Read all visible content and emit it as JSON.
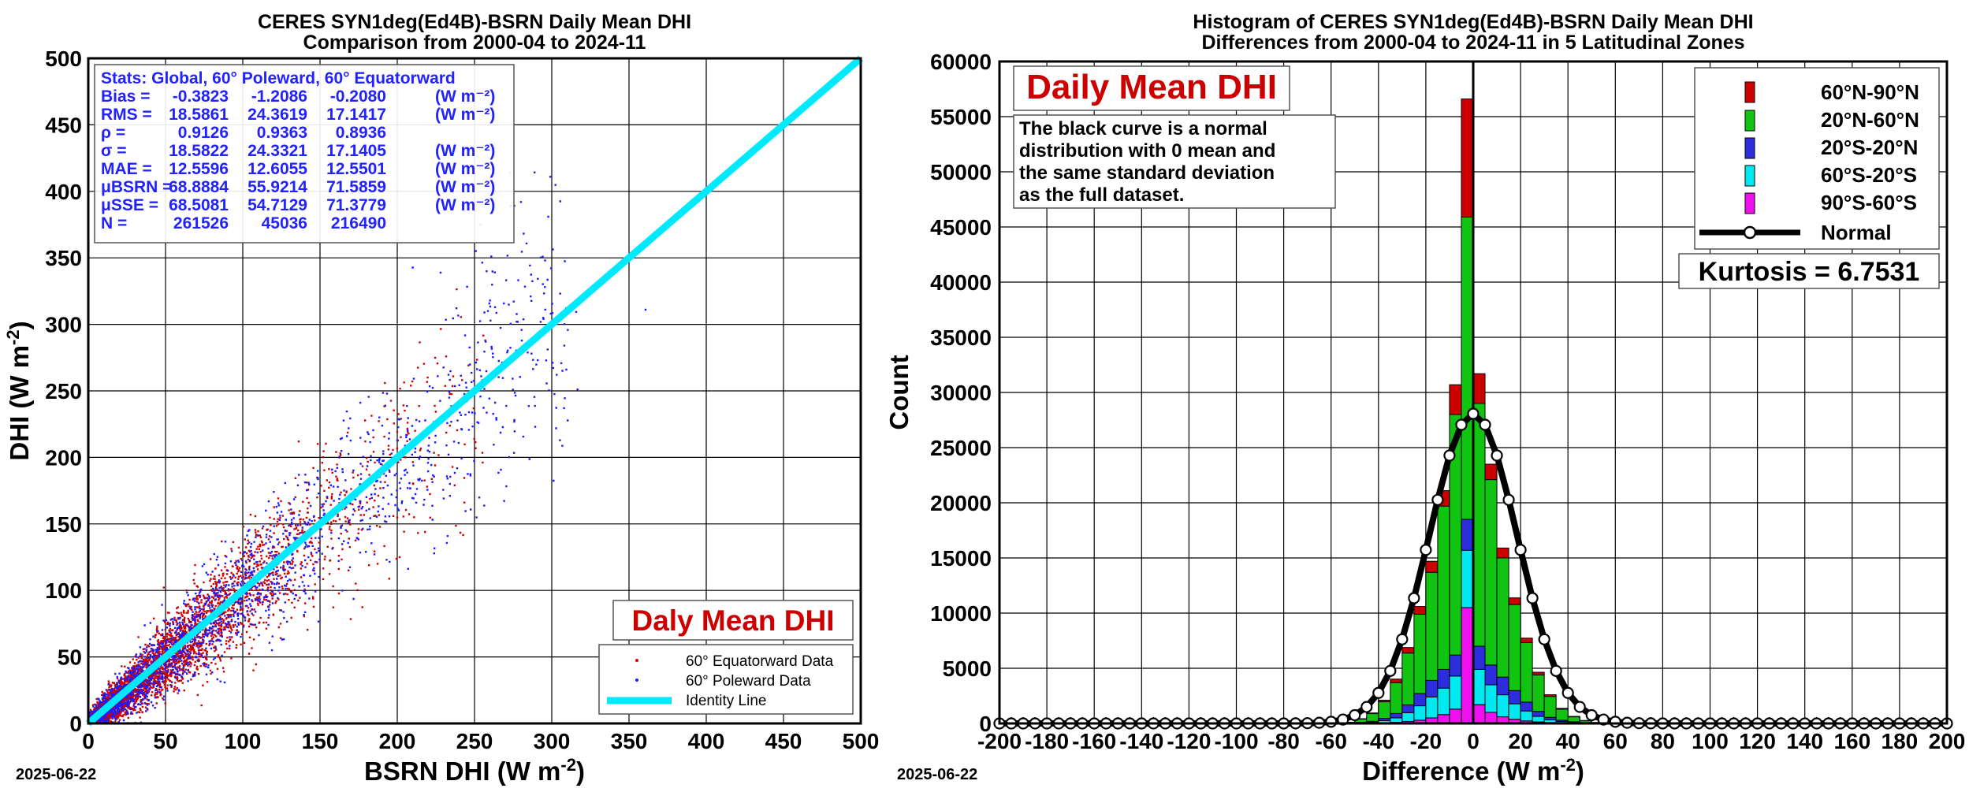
{
  "colors": {
    "equatorward": "#cc0000",
    "poleward": "#1a1aff",
    "identity": "#00eaff",
    "title_red": "#cc0000",
    "stats_blue": "#2222ff",
    "zone_60N_90N": "#cc0000",
    "zone_20N_60N": "#11c411",
    "zone_20S_20N": "#2d2ddd",
    "zone_60S_20S": "#00e8f0",
    "zone_90S_60S": "#ee10ee"
  },
  "left": {
    "title_line1": "CERES SYN1deg(Ed4B)-BSRN Daily Mean DHI",
    "title_line2": "Comparison from 2000-04 to 2024-11",
    "date": "2025-06-22",
    "inset_label": "Daly Mean DHI",
    "stats_header": "Stats: Global, 60° Poleward, 60° Equatorward",
    "stats_rows": [
      {
        "name": "Bias =",
        "v": [
          "-0.3823",
          "-1.2086",
          "-0.2080"
        ],
        "unit": "(W m⁻²)"
      },
      {
        "name": "RMS =",
        "v": [
          "18.5861",
          "24.3619",
          "17.1417"
        ],
        "unit": "(W m⁻²)"
      },
      {
        "name": "ρ =",
        "v": [
          "0.9126",
          "0.9363",
          "0.8936"
        ],
        "unit": ""
      },
      {
        "name": "σ =",
        "v": [
          "18.5822",
          "24.3321",
          "17.1405"
        ],
        "unit": "(W m⁻²)"
      },
      {
        "name": "MAE =",
        "v": [
          "12.5596",
          "12.6055",
          "12.5501"
        ],
        "unit": "(W m⁻²)"
      },
      {
        "name": "μBSRN =",
        "v": [
          "68.8884",
          "55.9214",
          "71.5859"
        ],
        "unit": "(W m⁻²)"
      },
      {
        "name": "μSSE =",
        "v": [
          "68.5081",
          "54.7129",
          "71.3779"
        ],
        "unit": "(W m⁻²)"
      },
      {
        "name": "N =",
        "v": [
          "261526",
          "45036",
          "216490"
        ],
        "unit": ""
      }
    ],
    "legend": [
      "60° Equatorward Data",
      "60° Poleward Data",
      "Identity Line"
    ]
  },
  "right": {
    "title_line1": "Histogram of CERES SYN1deg(Ed4B)-BSRN Daily Mean DHI",
    "title_line2": "Differences from 2000-04 to 2024-11 in 5 Latitudinal Zones",
    "date": "2025-06-22",
    "inset_label": "Daily Mean DHI",
    "note_lines": [
      "The black curve is a normal",
      "distribution with 0 mean and",
      "the same standard deviation",
      "as the full dataset."
    ],
    "kurtosis": "Kurtosis = 6.7531",
    "legend": [
      "60°N-90°N",
      "20°N-60°N",
      "20°S-20°N",
      "60°S-20°S",
      "90°S-60°S",
      "Normal"
    ]
  },
  "chart_data": [
    {
      "type": "scatter",
      "title": "CERES SYN1deg(Ed4B)-BSRN Daily Mean DHI Comparison from 2000-04 to 2024-11",
      "xlabel": "BSRN DHI (W m⁻²)",
      "ylabel": "DHI (W m⁻²)",
      "xlim": [
        0,
        500
      ],
      "ylim": [
        0,
        500
      ],
      "xticks": [
        0,
        50,
        100,
        150,
        200,
        250,
        300,
        350,
        400,
        450,
        500
      ],
      "yticks": [
        0,
        50,
        100,
        150,
        200,
        250,
        300,
        350,
        400,
        450,
        500
      ],
      "grid": true,
      "legend_position": "bottom-right",
      "series": [
        {
          "name": "60° Equatorward Data",
          "n": 216490,
          "mean_x": 71.5859,
          "mean_y": 71.3779,
          "bias": -0.208,
          "rms": 17.1417
        },
        {
          "name": "60° Poleward Data",
          "n": 45036,
          "mean_x": 55.9214,
          "mean_y": 54.7129,
          "bias": -1.2086,
          "rms": 24.3619
        },
        {
          "name": "Identity Line",
          "x": [
            0,
            500
          ],
          "y": [
            0,
            500
          ]
        }
      ]
    },
    {
      "type": "bar",
      "stacked": true,
      "title": "Histogram of CERES SYN1deg(Ed4B)-BSRN Daily Mean DHI Differences from 2000-04 to 2024-11 in 5 Latitudinal Zones",
      "xlabel": "Difference (W m⁻²)",
      "ylabel": "Count",
      "xlim": [
        -200,
        200
      ],
      "ylim": [
        0,
        60000
      ],
      "xticks": [
        -200,
        -180,
        -160,
        -140,
        -120,
        -100,
        -80,
        -60,
        -40,
        -20,
        0,
        20,
        40,
        60,
        80,
        100,
        120,
        140,
        160,
        180,
        200
      ],
      "yticks": [
        0,
        5000,
        10000,
        15000,
        20000,
        25000,
        30000,
        35000,
        40000,
        45000,
        50000,
        55000,
        60000
      ],
      "grid": true,
      "legend_position": "top-right",
      "bin_centers": [
        -52.5,
        -47.5,
        -42.5,
        -37.5,
        -32.5,
        -27.5,
        -22.5,
        -17.5,
        -12.5,
        -7.5,
        -2.5,
        2.5,
        7.5,
        12.5,
        17.5,
        22.5,
        27.5,
        32.5,
        37.5,
        42.5,
        47.5,
        52.5
      ],
      "series": [
        {
          "name": "90°S-60°S",
          "values": [
            0,
            20,
            30,
            60,
            100,
            180,
            300,
            500,
            800,
            1300,
            10500,
            1700,
            1000,
            600,
            380,
            230,
            140,
            80,
            50,
            30,
            20,
            0
          ]
        },
        {
          "name": "60°S-20°S",
          "values": [
            0,
            40,
            80,
            200,
            400,
            800,
            1300,
            1900,
            2400,
            3000,
            5200,
            3200,
            2500,
            2000,
            1400,
            900,
            500,
            250,
            120,
            60,
            30,
            0
          ]
        },
        {
          "name": "20°S-20°N",
          "values": [
            0,
            40,
            80,
            200,
            400,
            700,
            1100,
            1500,
            1700,
            1900,
            2800,
            2100,
            1800,
            1600,
            1200,
            800,
            450,
            220,
            120,
            60,
            30,
            0
          ]
        },
        {
          "name": "20°N-60°N",
          "values": [
            100,
            300,
            700,
            1500,
            2800,
            4700,
            7200,
            9800,
            14800,
            21800,
            27400,
            22000,
            16800,
            10800,
            7800,
            5400,
            3300,
            1900,
            1000,
            450,
            170,
            80
          ]
        },
        {
          "name": "60°N-90°N",
          "values": [
            10,
            30,
            60,
            150,
            320,
            500,
            700,
            1000,
            1400,
            2700,
            10700,
            2700,
            1400,
            900,
            600,
            400,
            250,
            150,
            80,
            40,
            20,
            10
          ]
        },
        {
          "name": "Normal",
          "x": [
            -200,
            -195,
            -190,
            -185,
            -180,
            -175,
            -170,
            -165,
            -160,
            -155,
            -150,
            -145,
            -140,
            -135,
            -130,
            -125,
            -120,
            -115,
            -110,
            -105,
            -100,
            -95,
            -90,
            -85,
            -80,
            -75,
            -70,
            -65,
            -60,
            -55,
            -50,
            -45,
            -40,
            -35,
            -30,
            -25,
            -20,
            -15,
            -10,
            -5,
            0,
            5,
            10,
            15,
            20,
            25,
            30,
            35,
            40,
            45,
            50,
            55,
            60,
            65,
            70,
            75,
            80,
            85,
            90,
            95,
            100,
            105,
            110,
            115,
            120,
            125,
            130,
            135,
            140,
            145,
            150,
            155,
            160,
            165,
            170,
            175,
            180,
            185,
            190,
            195,
            200
          ],
          "mean": 0,
          "sigma": 18.5822,
          "peak": 28070
        }
      ]
    }
  ]
}
